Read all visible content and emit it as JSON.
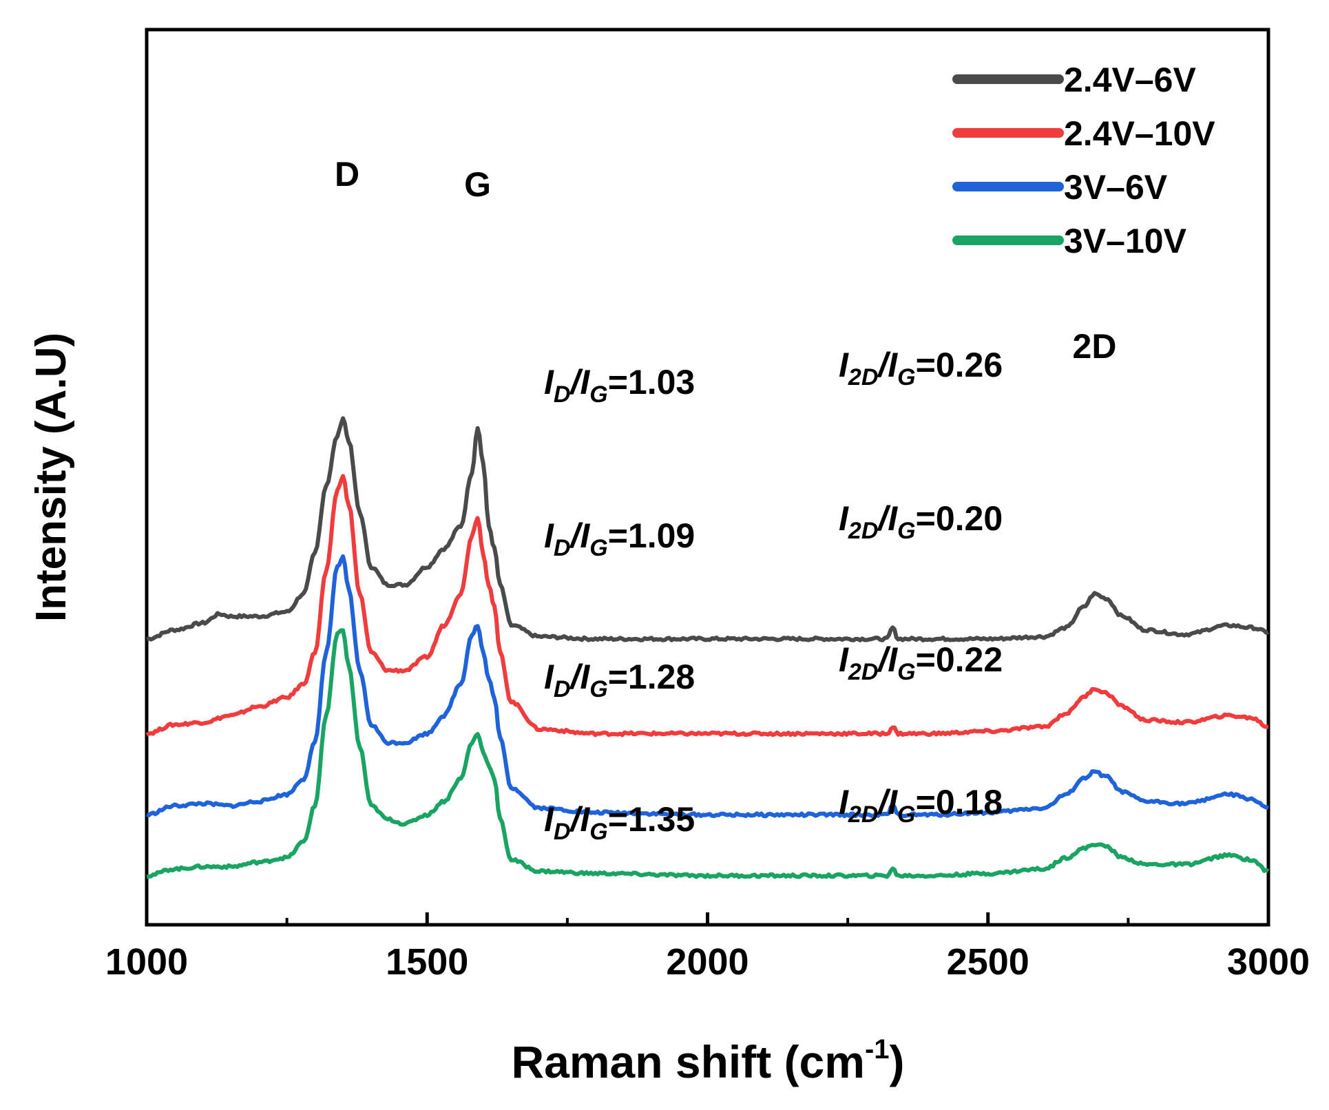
{
  "chart_data": {
    "type": "line",
    "xlabel": "Raman shift (cm",
    "xlabel_sup": "-1",
    "xlabel_close": ")",
    "ylabel": "Intensity (A.U)",
    "xlim": [
      1000,
      3000
    ],
    "ylim": [
      0,
      10
    ],
    "x_ticks": [
      1000,
      1500,
      2000,
      2500,
      3000
    ],
    "x_minor_ticks": [
      1250,
      1750,
      2250,
      2750
    ],
    "grid": false,
    "legend_position": "top-right",
    "peak_labels": [
      {
        "text": "D",
        "x": 1345
      },
      {
        "text": "G",
        "x": 1590
      },
      {
        "text": "2D",
        "x": 2690
      }
    ],
    "series": [
      {
        "name": "2.4V–6V",
        "color": "#4a4a4a",
        "ratio_d": {
          "sub1": "D",
          "sub2": "G",
          "value": "=1.03"
        },
        "ratio_2d": {
          "sub1": "2D",
          "sub2": "G",
          "value": "=0.26"
        },
        "x": [
          1000,
          1050,
          1100,
          1130,
          1150,
          1200,
          1250,
          1280,
          1300,
          1320,
          1340,
          1350,
          1360,
          1380,
          1400,
          1430,
          1460,
          1500,
          1530,
          1560,
          1580,
          1590,
          1600,
          1610,
          1620,
          1630,
          1650,
          1700,
          1800,
          2000,
          2300,
          2320,
          2330,
          2340,
          2400,
          2500,
          2600,
          2640,
          2670,
          2690,
          2710,
          2740,
          2780,
          2850,
          2930,
          2970,
          3000
        ],
        "y": [
          5.3,
          5.5,
          5.65,
          5.85,
          5.8,
          5.8,
          5.9,
          6.3,
          7.2,
          8.7,
          9.8,
          10.2,
          9.7,
          8.1,
          6.9,
          6.5,
          6.5,
          6.9,
          7.3,
          7.8,
          9.0,
          10.0,
          9.2,
          7.8,
          7.3,
          6.5,
          5.6,
          5.35,
          5.3,
          5.3,
          5.3,
          5.3,
          5.55,
          5.3,
          5.3,
          5.3,
          5.35,
          5.55,
          6.0,
          6.3,
          6.2,
          5.8,
          5.5,
          5.4,
          5.6,
          5.55,
          5.45
        ]
      },
      {
        "name": "2.4V–10V",
        "color": "#f03c3c",
        "ratio_d": {
          "sub1": "D",
          "sub2": "G",
          "value": "=1.09"
        },
        "ratio_2d": {
          "sub1": "2D",
          "sub2": "G",
          "value": "=0.20"
        },
        "x": [
          1000,
          1050,
          1100,
          1150,
          1200,
          1250,
          1280,
          1300,
          1320,
          1340,
          1350,
          1360,
          1380,
          1400,
          1430,
          1460,
          1500,
          1530,
          1560,
          1580,
          1590,
          1600,
          1610,
          1620,
          1630,
          1650,
          1700,
          1800,
          2000,
          2300,
          2320,
          2330,
          2340,
          2400,
          2500,
          2600,
          2640,
          2670,
          2690,
          2710,
          2740,
          2780,
          2850,
          2930,
          2970,
          3000
        ],
        "y": [
          3.2,
          3.4,
          3.45,
          3.6,
          3.8,
          4.0,
          4.3,
          5.0,
          6.8,
          8.6,
          8.9,
          8.3,
          6.3,
          5.0,
          4.6,
          4.6,
          4.9,
          5.6,
          6.3,
          7.6,
          8.0,
          7.2,
          6.5,
          6.0,
          5.0,
          3.9,
          3.3,
          3.2,
          3.2,
          3.2,
          3.2,
          3.35,
          3.2,
          3.2,
          3.25,
          3.35,
          3.65,
          4.0,
          4.2,
          4.1,
          3.8,
          3.5,
          3.45,
          3.6,
          3.55,
          3.35
        ]
      },
      {
        "name": "3V–6V",
        "color": "#1e63d9",
        "ratio_d": {
          "sub1": "D",
          "sub2": "G",
          "value": "=1.28"
        },
        "ratio_2d": {
          "sub1": "2D",
          "sub2": "G",
          "value": "=0.22"
        },
        "x": [
          1000,
          1050,
          1100,
          1150,
          1200,
          1250,
          1280,
          1300,
          1320,
          1340,
          1350,
          1360,
          1380,
          1400,
          1430,
          1460,
          1500,
          1530,
          1560,
          1580,
          1590,
          1600,
          1610,
          1620,
          1630,
          1650,
          1700,
          1800,
          2000,
          2300,
          2320,
          2330,
          2340,
          2400,
          2500,
          2600,
          2640,
          2670,
          2690,
          2710,
          2740,
          2780,
          2850,
          2930,
          2970,
          3000
        ],
        "y": [
          1.4,
          1.6,
          1.65,
          1.6,
          1.7,
          1.85,
          2.2,
          3.0,
          5.0,
          6.9,
          7.1,
          6.4,
          4.6,
          3.4,
          3.0,
          3.0,
          3.2,
          3.6,
          4.3,
          5.4,
          5.6,
          5.0,
          4.4,
          4.0,
          3.1,
          2.0,
          1.55,
          1.45,
          1.4,
          1.4,
          1.4,
          1.6,
          1.4,
          1.4,
          1.45,
          1.55,
          1.85,
          2.2,
          2.35,
          2.25,
          1.9,
          1.7,
          1.65,
          1.85,
          1.75,
          1.55
        ]
      },
      {
        "name": "3V–10V",
        "color": "#1aa463",
        "ratio_d": {
          "sub1": "D",
          "sub2": "G",
          "value": "=1.35"
        },
        "ratio_2d": {
          "sub1": "2D",
          "sub2": "G",
          "value": "=0.18"
        },
        "x": [
          1000,
          1050,
          1100,
          1150,
          1200,
          1250,
          1280,
          1300,
          1320,
          1340,
          1350,
          1360,
          1380,
          1400,
          1430,
          1460,
          1500,
          1530,
          1560,
          1580,
          1590,
          1600,
          1610,
          1620,
          1630,
          1650,
          1700,
          1800,
          2000,
          2300,
          2320,
          2330,
          2340,
          2400,
          2500,
          2600,
          2640,
          2670,
          2690,
          2710,
          2740,
          2780,
          2850,
          2930,
          2970,
          3000
        ],
        "y": [
          0.05,
          0.2,
          0.25,
          0.25,
          0.35,
          0.45,
          0.8,
          1.6,
          3.6,
          5.4,
          5.5,
          4.7,
          2.9,
          1.6,
          1.3,
          1.2,
          1.4,
          1.7,
          2.2,
          3.0,
          3.2,
          2.8,
          2.5,
          2.2,
          1.3,
          0.4,
          0.15,
          0.1,
          0.05,
          0.05,
          0.05,
          0.2,
          0.05,
          0.05,
          0.1,
          0.2,
          0.45,
          0.65,
          0.75,
          0.7,
          0.45,
          0.3,
          0.3,
          0.5,
          0.4,
          0.15
        ]
      }
    ]
  }
}
